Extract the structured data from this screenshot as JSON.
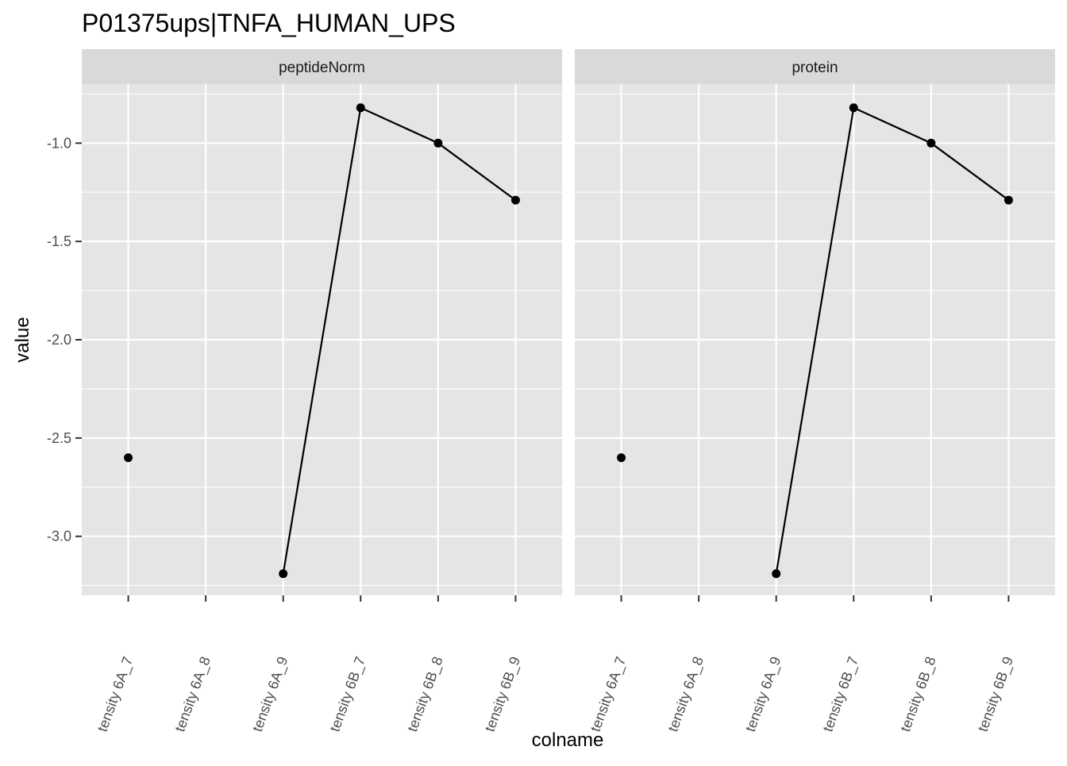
{
  "chart_data": {
    "type": "line",
    "title": "P01375ups|TNFA_HUMAN_UPS",
    "xlabel": "colname",
    "ylabel": "value",
    "categories": [
      "tensity 6A_7",
      "tensity 6A_8",
      "tensity 6A_9",
      "tensity 6B_7",
      "tensity 6B_8",
      "tensity 6B_9"
    ],
    "ylim": [
      -3.3,
      -0.7
    ],
    "y_ticks": [
      "-1.0",
      "-1.5",
      "-2.0",
      "-2.5",
      "-3.0"
    ],
    "grid": true,
    "facets": [
      {
        "name": "peptideNorm",
        "values": [
          -2.6,
          null,
          -3.19,
          -0.82,
          -1.0,
          -1.29
        ]
      },
      {
        "name": "protein",
        "values": [
          -2.6,
          null,
          -3.19,
          -0.82,
          -1.0,
          -1.29
        ]
      }
    ],
    "colors": {
      "panel_background": "#e5e5e5",
      "strip_background": "#d9d9d9",
      "grid": "#ffffff",
      "marker": "#000000"
    }
  }
}
